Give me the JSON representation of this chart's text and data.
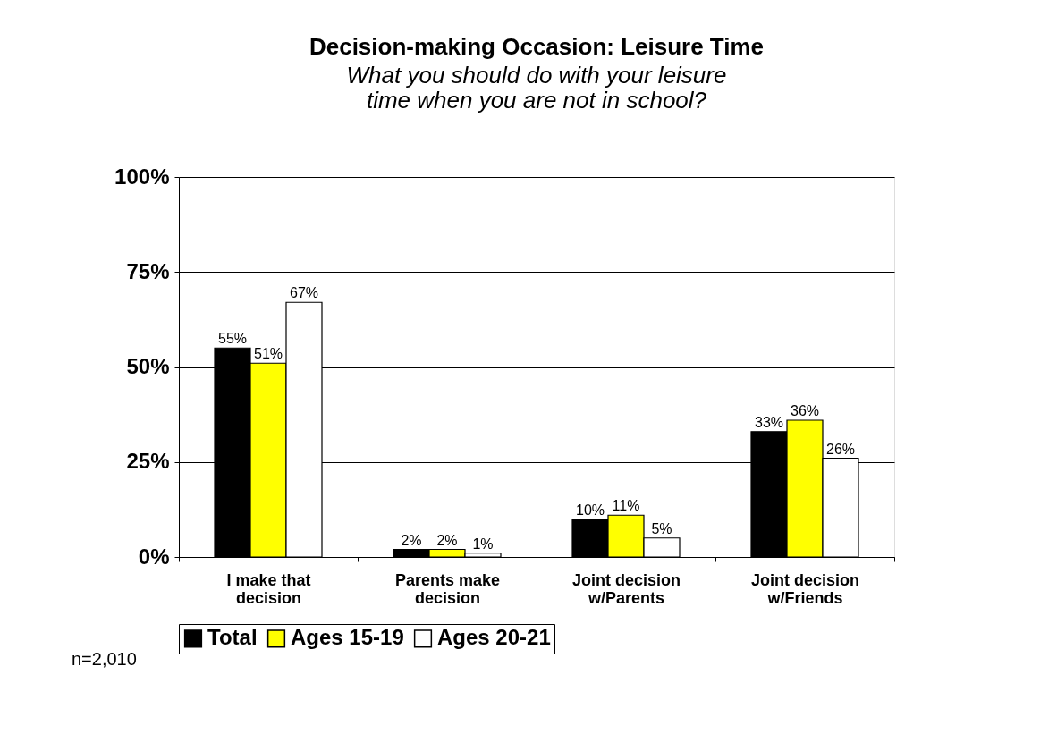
{
  "chart_data": {
    "type": "bar",
    "title": "Decision-making Occasion:  Leisure Time",
    "subtitle": "What you should do with your leisure time when you are not in school?",
    "categories": [
      "I make that decision",
      "Parents make decision",
      "Joint decision w/Parents",
      "Joint decision w/Friends"
    ],
    "series": [
      {
        "name": "Total",
        "color": "#000000",
        "values": [
          55,
          2,
          10,
          33
        ],
        "value_labels": [
          "55%",
          "2%",
          "10%",
          "33%"
        ]
      },
      {
        "name": "Ages 15-19",
        "color": "#ffff00",
        "values": [
          51,
          2,
          11,
          36
        ],
        "value_labels": [
          "51%",
          "2%",
          "11%",
          "36%"
        ]
      },
      {
        "name": "Ages 20-21",
        "color": "#ffffff",
        "values": [
          67,
          1,
          5,
          26
        ],
        "value_labels": [
          "67%",
          "1%",
          "5%",
          "26%"
        ]
      }
    ],
    "ylim": [
      0,
      100
    ],
    "yticks": [
      {
        "value": 0,
        "label": "0%"
      },
      {
        "value": 25,
        "label": "25%"
      },
      {
        "value": 50,
        "label": "50%"
      },
      {
        "value": 75,
        "label": "75%"
      },
      {
        "value": 100,
        "label": "100%"
      }
    ],
    "grid": "y",
    "legend": "bottom",
    "annotations": [
      "n=2,010"
    ]
  }
}
